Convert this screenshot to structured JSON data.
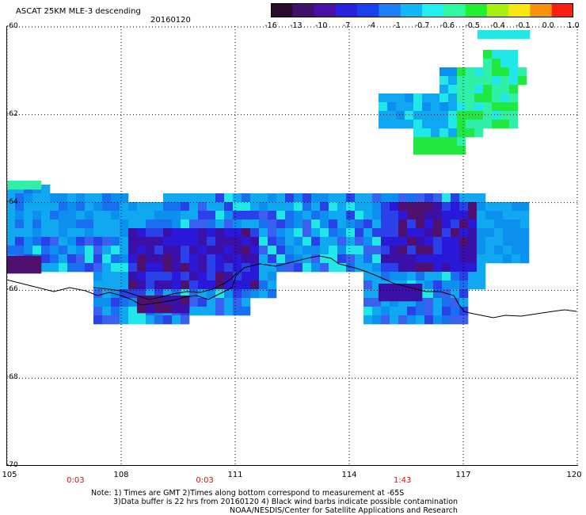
{
  "header": {
    "title": "ASCAT 25KM MLE-3 descending",
    "date": "20160120"
  },
  "colorbar": {
    "labels": [
      "-16",
      "-13",
      "-10",
      "-7",
      "-4",
      "-1",
      "-0.7",
      "-0.6",
      "-0.5",
      "-0.4",
      "-0.1",
      "0.0",
      "1.0"
    ],
    "colors": [
      "#2a0a2a",
      "#40106a",
      "#4a10a8",
      "#2a20e0",
      "#1a40f0",
      "#1a80f8",
      "#10b8f8",
      "#20f0f0",
      "#30f8a0",
      "#20f030",
      "#a8f010",
      "#f8e810",
      "#f89010",
      "#f82010"
    ]
  },
  "map": {
    "lat_labels": [
      "-60",
      "-62",
      "-64",
      "-66",
      "-68",
      "-70"
    ],
    "lon_labels": [
      "105",
      "108",
      "111",
      "114",
      "117",
      "120"
    ],
    "lat_values": [
      -60,
      -62,
      -64,
      -66,
      -68,
      -70
    ],
    "lon_values": [
      105,
      108,
      111,
      114,
      117,
      120
    ],
    "times": [
      {
        "label": "0:03",
        "lon": 106.8
      },
      {
        "label": "0:03",
        "lon": 110.2
      },
      {
        "label": "1:43",
        "lon": 115.4
      }
    ]
  },
  "notes": {
    "line1": "Note: 1) Times are GMT 2)Times along bottom correspond to measurement at -65S",
    "line2": "3)Data buffer is 22 hrs from 20160120 4) Black wind barbs indicate possible contamination",
    "line3": "NOAA/NESDIS/Center for Satellite Applications and Research"
  }
}
